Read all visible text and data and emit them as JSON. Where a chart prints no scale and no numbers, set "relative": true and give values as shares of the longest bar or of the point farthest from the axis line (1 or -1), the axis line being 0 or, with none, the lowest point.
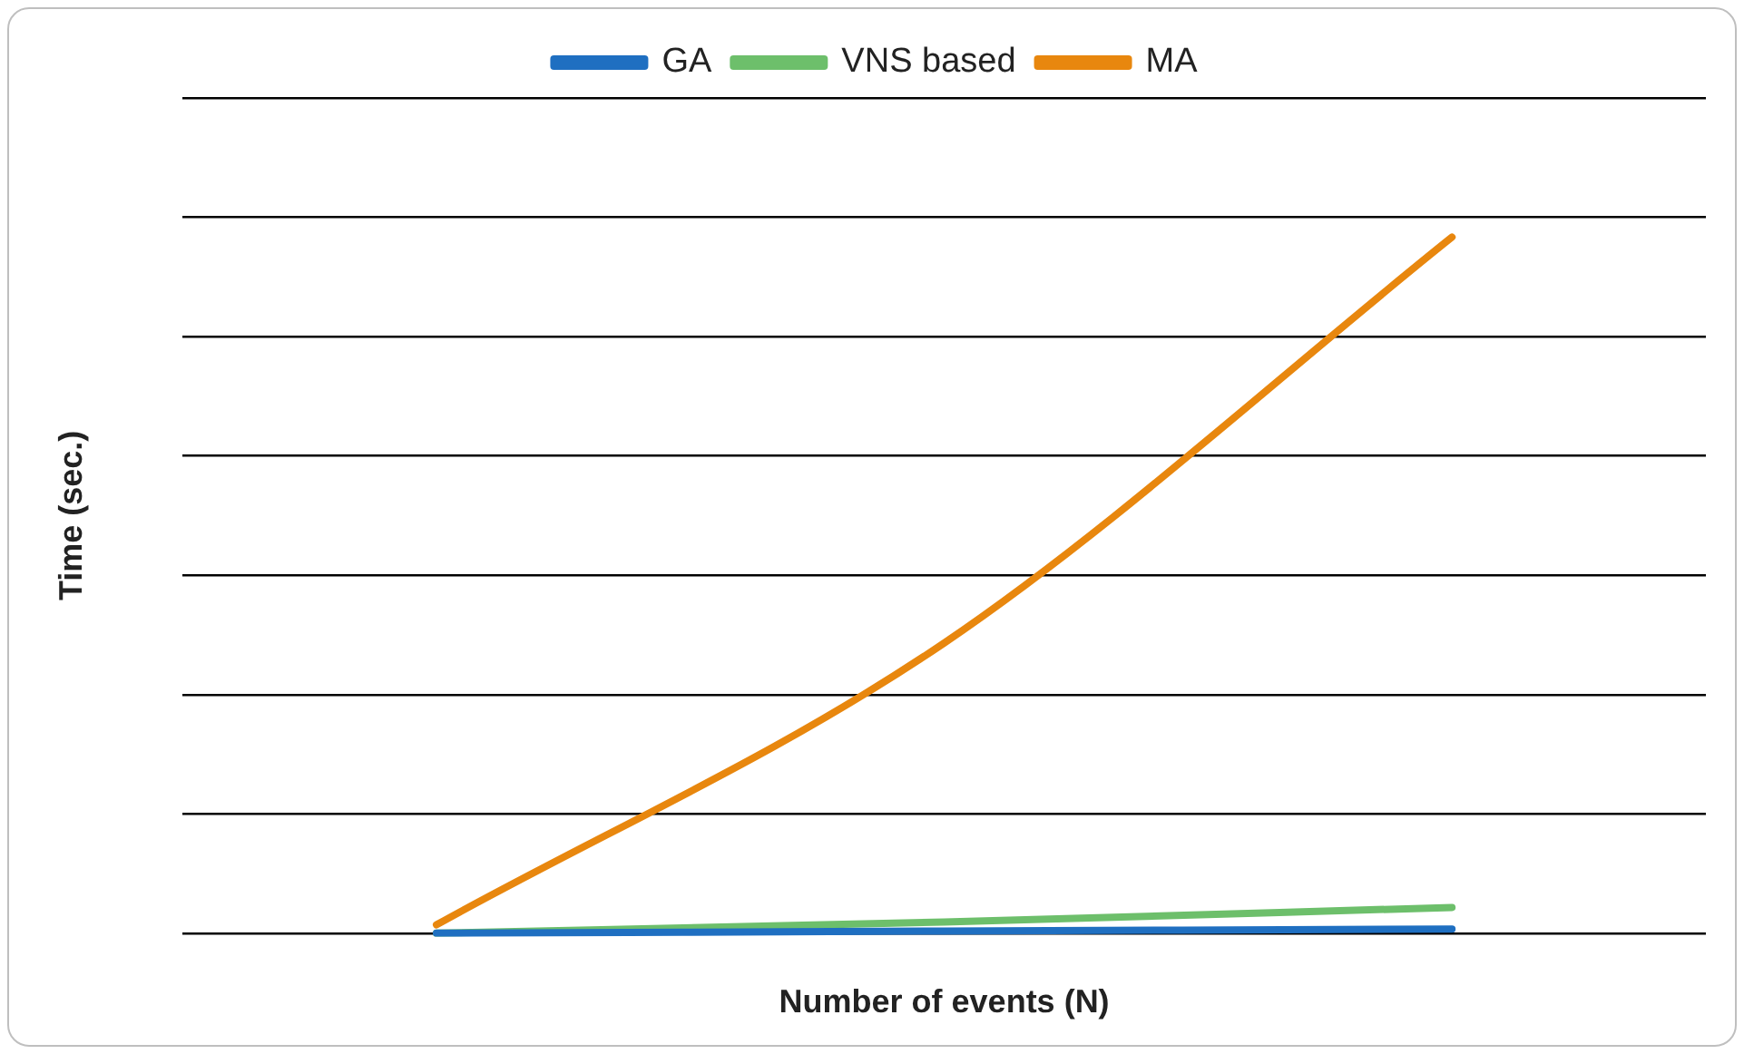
{
  "chart_data": {
    "type": "line",
    "xlabel": "Number of events (N)",
    "ylabel": "Time (sec.)",
    "relative": true,
    "categories": [
      null,
      null,
      null
    ],
    "series": [
      {
        "name": "GA",
        "color": "#1f6fc1",
        "values": [
          0,
          0.003,
          0.006
        ]
      },
      {
        "name": "VNS based",
        "color": "#6dbf6b",
        "values": [
          0,
          0.016,
          0.037
        ]
      },
      {
        "name": "MA",
        "color": "#e8870e",
        "values": [
          0.012,
          0.417,
          1
        ]
      }
    ],
    "legend": "top",
    "grid": "y",
    "marker": "none",
    "line_style": "solid"
  }
}
